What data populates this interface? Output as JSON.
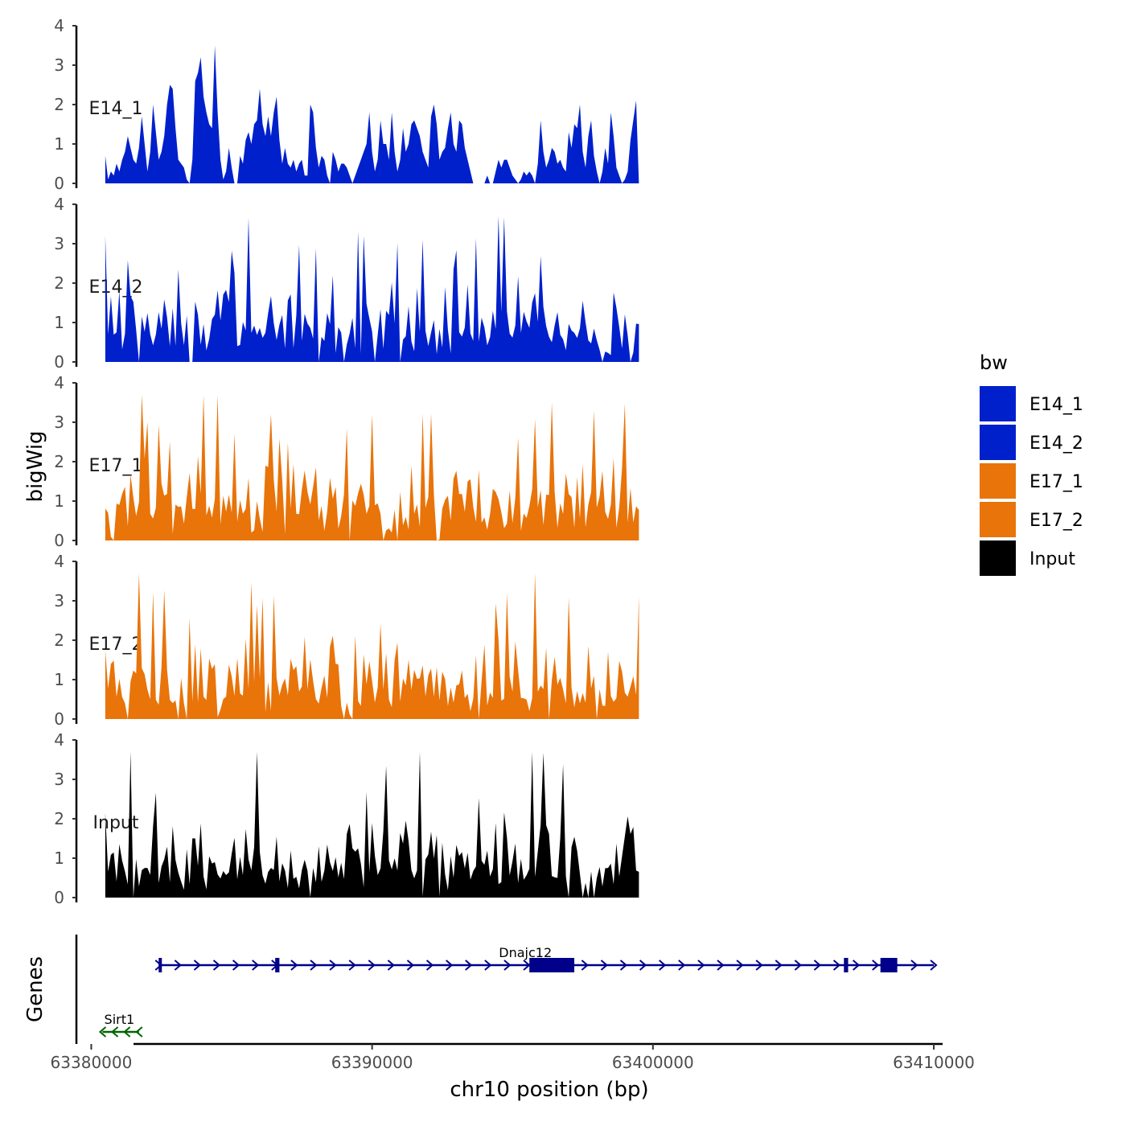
{
  "chart_data": {
    "type": "area",
    "x_axis": {
      "label": "chr10 position (bp)",
      "range": [
        63379500,
        63410200
      ],
      "ticks": [
        63380000,
        63390000,
        63400000,
        63410000
      ],
      "tick_labels": [
        "63380000",
        "63390000",
        "63400000",
        "63410000"
      ]
    },
    "y_axis": {
      "label": "bigWig",
      "range": [
        0,
        4
      ],
      "ticks": [
        0,
        1,
        2,
        3,
        4
      ],
      "tick_labels": [
        "0",
        "1",
        "2",
        "3",
        "4"
      ]
    },
    "genes_axis_label": "Genes",
    "legend": {
      "title": "bw",
      "entries": [
        {
          "label": "E14_1",
          "color": "#0020cc"
        },
        {
          "label": "E14_2",
          "color": "#0020cc"
        },
        {
          "label": "E17_1",
          "color": "#e8740a"
        },
        {
          "label": "E17_2",
          "color": "#e8740a"
        },
        {
          "label": "Input",
          "color": "#000000"
        }
      ]
    },
    "series": [
      {
        "name": "E14_1",
        "label": "E14_1",
        "color": "#0020cc",
        "x_start": 63380500,
        "step": 100,
        "values": [
          0.7,
          0.1,
          0.3,
          0.2,
          0.5,
          0.3,
          0.6,
          0.8,
          1.2,
          0.9,
          0.6,
          0.5,
          0.9,
          1.7,
          1.0,
          0.3,
          0.8,
          2.0,
          1.3,
          0.6,
          0.8,
          1.2,
          2.0,
          2.5,
          2.4,
          1.4,
          0.6,
          0.5,
          0.4,
          0.1,
          0.0,
          0.6,
          2.6,
          2.8,
          3.2,
          2.2,
          1.8,
          1.5,
          1.4,
          3.5,
          1.8,
          0.6,
          0.1,
          0.3,
          0.9,
          0.4,
          0.0,
          0.0,
          0.7,
          0.5,
          1.1,
          1.3,
          1.0,
          1.5,
          1.6,
          2.4,
          1.5,
          1.2,
          1.7,
          1.2,
          1.8,
          2.2,
          1.1,
          0.5,
          0.9,
          0.5,
          0.4,
          0.6,
          0.3,
          0.5,
          0.6,
          0.2,
          0.2,
          2.0,
          1.8,
          0.9,
          0.4,
          0.7,
          0.6,
          0.2,
          0.0,
          0.8,
          0.6,
          0.3,
          0.5,
          0.5,
          0.4,
          0.2,
          0.0,
          0.2,
          0.4,
          0.6,
          0.8,
          1.0,
          1.8,
          0.8,
          0.3,
          0.6,
          1.6,
          1.0,
          1.0,
          0.6,
          1.8,
          0.8,
          0.3,
          0.6,
          1.4,
          0.8,
          1.0,
          1.5,
          1.6,
          1.4,
          1.2,
          0.8,
          0.6,
          0.4,
          1.7,
          2.0,
          1.5,
          0.6,
          0.8,
          0.9,
          1.4,
          1.8,
          1.0,
          0.8,
          1.6,
          1.5,
          0.9,
          0.6,
          0.3,
          0.0,
          0.0,
          0.0,
          0.0,
          0.0,
          0.2,
          0.0,
          0.0,
          0.3,
          0.6,
          0.4,
          0.6,
          0.6,
          0.4,
          0.2,
          0.1,
          0.0,
          0.1,
          0.3,
          0.2,
          0.3,
          0.2,
          0.0,
          0.5,
          1.6,
          0.8,
          0.4,
          0.6,
          0.9,
          0.8,
          0.5,
          0.6,
          0.4,
          0.3,
          1.3,
          0.9,
          1.5,
          1.4,
          2.0,
          0.8,
          0.4,
          1.2,
          1.6,
          0.7,
          0.3,
          0.0,
          0.3,
          0.9,
          0.5,
          1.8,
          1.2,
          0.4,
          0.2,
          0.0,
          0.1,
          0.3,
          1.1,
          1.6,
          2.1,
          0.0
        ],
        "values_note": "coarse-reconstructed signal; x_start and step are in bp"
      }
    ],
    "genes": [
      {
        "name": "Dnajc12",
        "start": 63382400,
        "end": 63410000,
        "strand": "+",
        "color": "#00008b",
        "exons": [
          [
            63382400,
            63382480
          ],
          [
            63386550,
            63386700
          ],
          [
            63395600,
            63397200
          ],
          [
            63406800,
            63406950
          ],
          [
            63408100,
            63408700
          ]
        ]
      },
      {
        "name": "Sirt1",
        "start": 63380400,
        "end": 63381700,
        "strand": "-",
        "color": "#006400",
        "exons": []
      }
    ]
  }
}
